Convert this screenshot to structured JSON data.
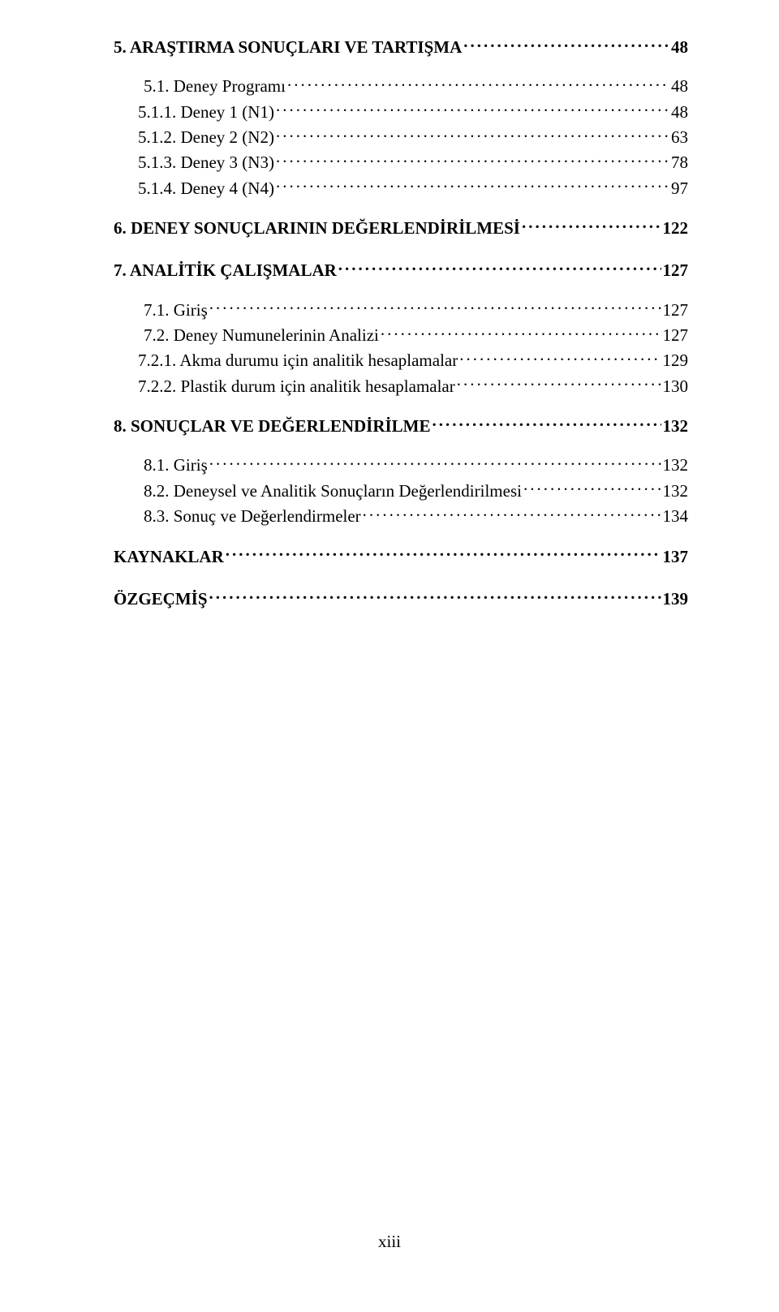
{
  "colors": {
    "background": "#ffffff",
    "text": "#000000"
  },
  "typography": {
    "font_family": "Times New Roman",
    "heading_fontsize_pt": 16,
    "sub_fontsize_pt": 16
  },
  "toc": {
    "section5": {
      "title": "5. ARAŞTIRMA SONUÇLARI VE TARTIŞMA",
      "page": "48",
      "items": [
        {
          "label": "5.1. Deney Programı",
          "page": "48"
        },
        {
          "label": "5.1.1. Deney 1 (N1)",
          "page": "48"
        },
        {
          "label": "5.1.2. Deney 2 (N2)",
          "page": "63"
        },
        {
          "label": "5.1.3. Deney 3 (N3)",
          "page": "78"
        },
        {
          "label": "5.1.4. Deney 4 (N4)",
          "page": "97"
        }
      ]
    },
    "section6": {
      "title": "6. DENEY SONUÇLARININ DEĞERLENDİRİLMESİ",
      "page": "122"
    },
    "section7": {
      "title": "7. ANALİTİK ÇALIŞMALAR",
      "page": "127",
      "items": [
        {
          "label": "7.1. Giriş",
          "page": "127"
        },
        {
          "label": "7.2. Deney Numunelerinin Analizi",
          "page": "127"
        },
        {
          "label": "7.2.1. Akma durumu için analitik hesaplamalar",
          "page": "129"
        },
        {
          "label": "7.2.2. Plastik durum için analitik hesaplamalar",
          "page": "130"
        }
      ]
    },
    "section8": {
      "title": "8. SONUÇLAR VE DEĞERLENDİRİLME",
      "page": "132",
      "items": [
        {
          "label": "8.1. Giriş",
          "page": "132"
        },
        {
          "label": "8.2. Deneysel ve Analitik Sonuçların Değerlendirilmesi",
          "page": "132"
        },
        {
          "label": "8.3. Sonuç ve Değerlendirmeler",
          "page": "134"
        }
      ]
    },
    "kaynaklar": {
      "title": "KAYNAKLAR",
      "page": "137"
    },
    "ozgecmis": {
      "title": "ÖZGEÇMİŞ",
      "page": "139"
    }
  },
  "page_number": "xiii"
}
